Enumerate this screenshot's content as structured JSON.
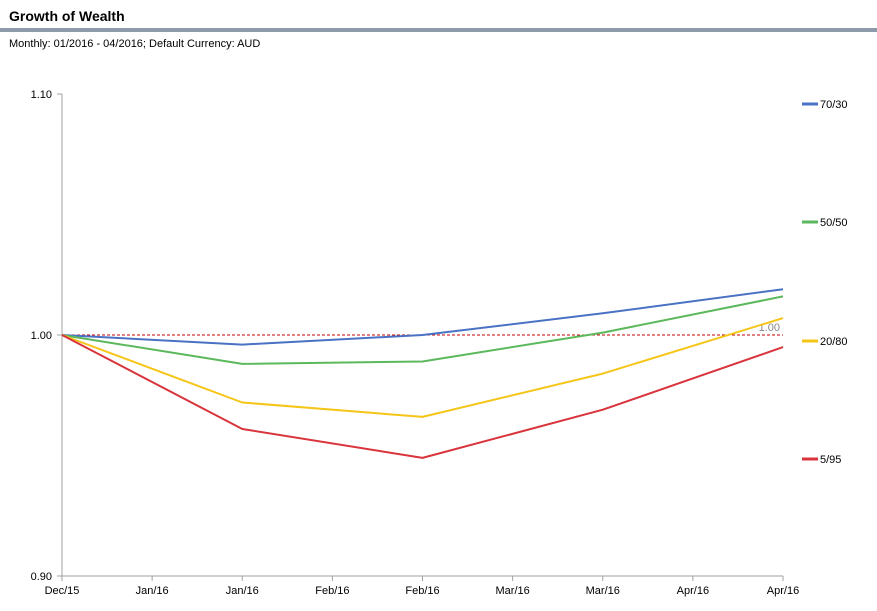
{
  "header": {
    "title": "Growth of Wealth",
    "subtitle": "Monthly: 01/2016 - 04/2016; Default Currency: AUD"
  },
  "colors": {
    "title_bar": "#8c9aaa",
    "reference_line": "#c00000",
    "axis": "#a0a0a0"
  },
  "chart_data": {
    "type": "line",
    "title": "Growth of Wealth",
    "subtitle": "Monthly: 01/2016 - 04/2016; Default Currency: AUD",
    "x_ticks": [
      "Dec/15",
      "Jan/16",
      "Jan/16",
      "Feb/16",
      "Feb/16",
      "Mar/16",
      "Mar/16",
      "Apr/16",
      "Apr/16"
    ],
    "categories": [
      "Dec/15",
      "Jan/16",
      "Feb/16",
      "Mar/16",
      "Apr/16"
    ],
    "ylim": [
      0.9,
      1.1
    ],
    "y_ticks": [
      "0.90",
      "1.00",
      "1.10"
    ],
    "reference_line": {
      "value": 1.0,
      "label": "1.00"
    },
    "grid": false,
    "legend_position": "right",
    "series": [
      {
        "name": "70/30",
        "color": "#4a72c4",
        "values": [
          1.0,
          0.996,
          1.0,
          1.009,
          1.019
        ]
      },
      {
        "name": "50/50",
        "color": "#5cb85c",
        "values": [
          1.0,
          0.988,
          0.989,
          1.001,
          1.016
        ]
      },
      {
        "name": "20/80",
        "color": "#f5c518",
        "values": [
          1.0,
          0.972,
          0.966,
          0.984,
          1.007
        ]
      },
      {
        "name": "5/95",
        "color": "#d9343c",
        "values": [
          1.0,
          0.961,
          0.949,
          0.969,
          0.995
        ]
      }
    ]
  }
}
